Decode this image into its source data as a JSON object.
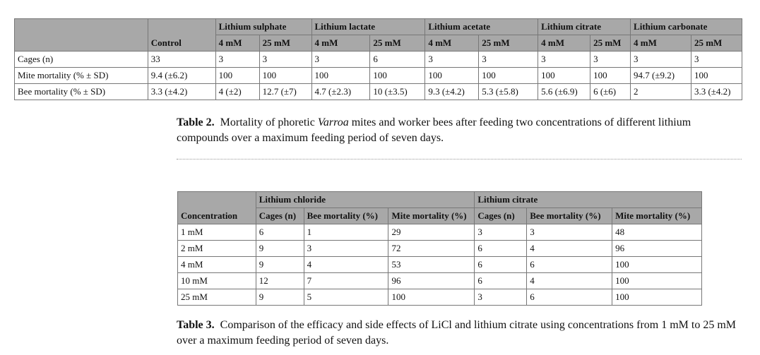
{
  "table2": {
    "compounds": [
      "Lithium sulphate",
      "Lithium lactate",
      "Lithium acetate",
      "Lithium citrate",
      "Lithium carbonate"
    ],
    "control_label": "Control",
    "conc": [
      "4 mM",
      "25 mM"
    ],
    "rows": [
      {
        "label": "Cages (n)",
        "values": [
          "33",
          "3",
          "3",
          "3",
          "6",
          "3",
          "3",
          "3",
          "3",
          "3",
          "3"
        ]
      },
      {
        "label": "Mite mortality (% ± SD)",
        "values": [
          "9.4 (±6.2)",
          "100",
          "100",
          "100",
          "100",
          "100",
          "100",
          "100",
          "100",
          "94.7 (±9.2)",
          "100"
        ]
      },
      {
        "label": "Bee mortality (% ± SD)",
        "values": [
          "3.3 (±4.2)",
          "4 (±2)",
          "12.7 (±7)",
          "4.7 (±2.3)",
          "10 (±3.5)",
          "9.3 (±4.2)",
          "5.3 (±5.8)",
          "5.6 (±6.9)",
          "6 (±6)",
          "2",
          "3.3 (±4.2)"
        ]
      }
    ],
    "caption_label": "Table 2.",
    "caption_pre": "Mortality of phoretic ",
    "caption_italic": "Varroa",
    "caption_post": " mites and worker bees after feeding two concentrations of different lithium compounds over a maximum feeding period of seven days."
  },
  "table3": {
    "compounds": [
      "Lithium chloride",
      "Lithium citrate"
    ],
    "first_header": "Concentration",
    "sub_headers": [
      "Cages (n)",
      "Bee mortality (%)",
      "Mite mortality (%)"
    ],
    "rows": [
      [
        "1 mM",
        "6",
        "1",
        "29",
        "3",
        "3",
        "48"
      ],
      [
        "2 mM",
        "9",
        "3",
        "72",
        "6",
        "4",
        "96"
      ],
      [
        "4 mM",
        "9",
        "4",
        "53",
        "6",
        "6",
        "100"
      ],
      [
        "10 mM",
        "12",
        "7",
        "96",
        "6",
        "4",
        "100"
      ],
      [
        "25 mM",
        "9",
        "5",
        "100",
        "3",
        "6",
        "100"
      ]
    ],
    "caption_label": "Table 3.",
    "caption_text": "Comparison of the efficacy and side effects of LiCl and lithium citrate using concentrations from 1 mM to 25 mM over a maximum feeding period of seven days."
  }
}
